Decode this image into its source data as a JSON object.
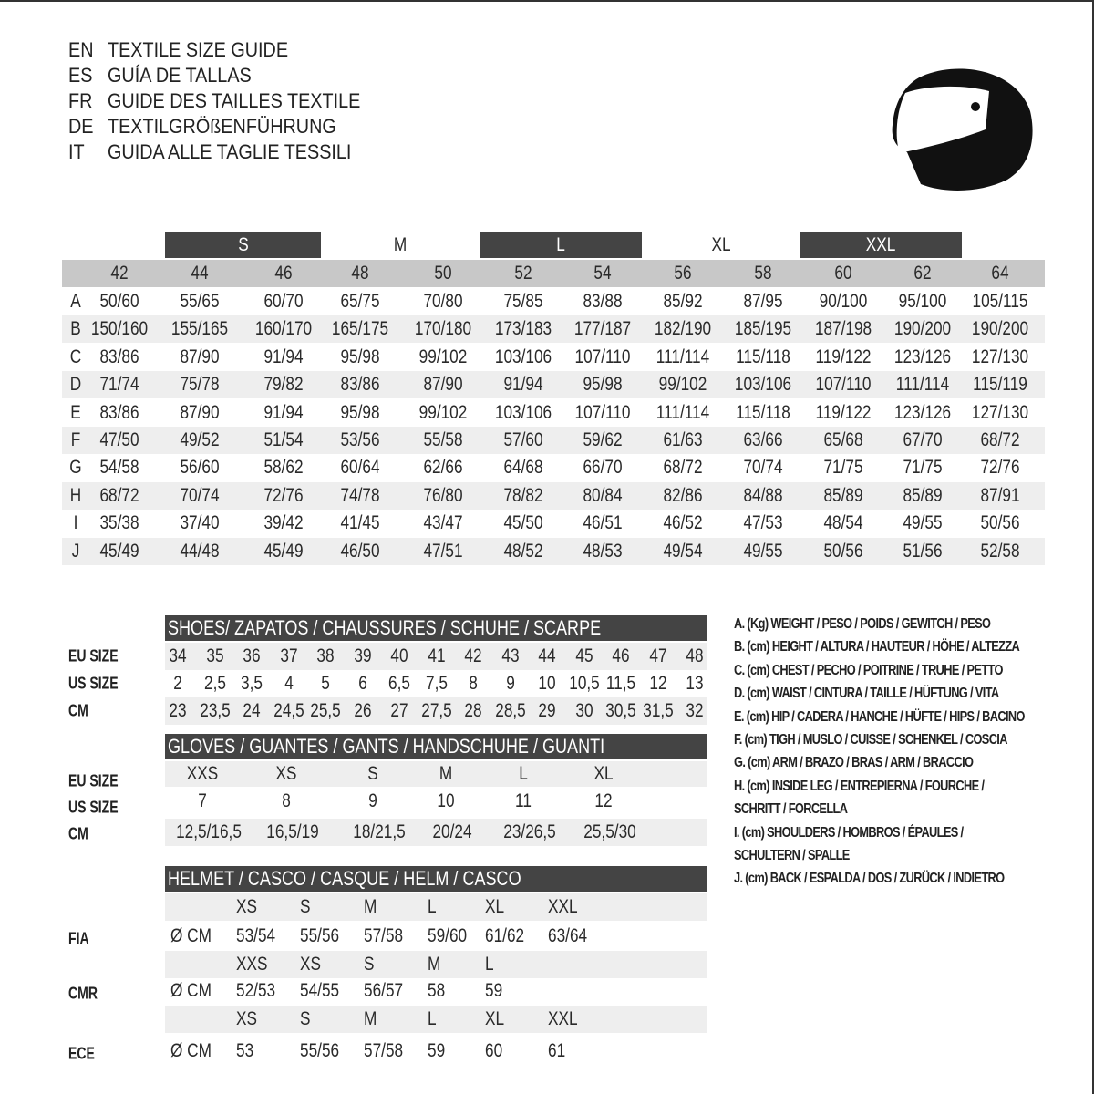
{
  "titles": [
    {
      "code": "EN",
      "text": "TEXTILE SIZE GUIDE"
    },
    {
      "code": "ES",
      "text": "GUÍA DE TALLAS"
    },
    {
      "code": "FR",
      "text": "GUIDE DES TAILLES TEXTILE"
    },
    {
      "code": "DE",
      "text": "TEXTILGRÖßENFÜHRUNG"
    },
    {
      "code": "IT",
      "text": "GUIDA ALLE TAGLIE TESSILI"
    }
  ],
  "logo_icon": "helmet-icon",
  "textile": {
    "size_groups": [
      "S",
      "M",
      "L",
      "XL",
      "XXL"
    ],
    "sizes": [
      "42",
      "44",
      "46",
      "48",
      "50",
      "52",
      "54",
      "56",
      "58",
      "60",
      "62",
      "64"
    ],
    "rows": [
      {
        "label": "A",
        "values": [
          "50/60",
          "55/65",
          "60/70",
          "65/75",
          "70/80",
          "75/85",
          "83/88",
          "85/92",
          "87/95",
          "90/100",
          "95/100",
          "105/115"
        ]
      },
      {
        "label": "B",
        "values": [
          "150/160",
          "155/165",
          "160/170",
          "165/175",
          "170/180",
          "173/183",
          "177/187",
          "182/190",
          "185/195",
          "187/198",
          "190/200",
          "190/200"
        ]
      },
      {
        "label": "C",
        "values": [
          "83/86",
          "87/90",
          "91/94",
          "95/98",
          "99/102",
          "103/106",
          "107/110",
          "111/114",
          "115/118",
          "119/122",
          "123/126",
          "127/130"
        ]
      },
      {
        "label": "D",
        "values": [
          "71/74",
          "75/78",
          "79/82",
          "83/86",
          "87/90",
          "91/94",
          "95/98",
          "99/102",
          "103/106",
          "107/110",
          "111/114",
          "115/119"
        ]
      },
      {
        "label": "E",
        "values": [
          "83/86",
          "87/90",
          "91/94",
          "95/98",
          "99/102",
          "103/106",
          "107/110",
          "111/114",
          "115/118",
          "119/122",
          "123/126",
          "127/130"
        ]
      },
      {
        "label": "F",
        "values": [
          "47/50",
          "49/52",
          "51/54",
          "53/56",
          "55/58",
          "57/60",
          "59/62",
          "61/63",
          "63/66",
          "65/68",
          "67/70",
          "68/72"
        ]
      },
      {
        "label": "G",
        "values": [
          "54/58",
          "56/60",
          "58/62",
          "60/64",
          "62/66",
          "64/68",
          "66/70",
          "68/72",
          "70/74",
          "71/75",
          "71/75",
          "72/76"
        ]
      },
      {
        "label": "H",
        "values": [
          "68/72",
          "70/74",
          "72/76",
          "74/78",
          "76/80",
          "78/82",
          "80/84",
          "82/86",
          "84/88",
          "85/89",
          "85/89",
          "87/91"
        ]
      },
      {
        "label": "I",
        "values": [
          "35/38",
          "37/40",
          "39/42",
          "41/45",
          "43/47",
          "45/50",
          "46/51",
          "46/52",
          "47/53",
          "48/54",
          "49/55",
          "50/56"
        ]
      },
      {
        "label": "J",
        "values": [
          "45/49",
          "44/48",
          "45/49",
          "46/50",
          "47/51",
          "48/52",
          "48/53",
          "49/54",
          "49/55",
          "50/56",
          "51/56",
          "52/58"
        ]
      }
    ]
  },
  "shoes": {
    "header": "SHOES/ ZAPATOS / CHAUSSURES / SCHUHE / SCARPE",
    "rows": [
      {
        "label": "EU SIZE",
        "values": [
          "34",
          "35",
          "36",
          "37",
          "38",
          "39",
          "40",
          "41",
          "42",
          "43",
          "44",
          "45",
          "46",
          "47",
          "48"
        ]
      },
      {
        "label": "US SIZE",
        "values": [
          "2",
          "2,5",
          "3,5",
          "4",
          "5",
          "6",
          "6,5",
          "7,5",
          "8",
          "9",
          "10",
          "10,5",
          "11,5",
          "12",
          "13"
        ]
      },
      {
        "label": "CM",
        "values": [
          "23",
          "23,5",
          "24",
          "24,5",
          "25,5",
          "26",
          "27",
          "27,5",
          "28",
          "28,5",
          "29",
          "30",
          "30,5",
          "31,5",
          "32"
        ]
      }
    ]
  },
  "gloves": {
    "header": "GLOVES / GUANTES / GANTS / HANDSCHUHE / GUANTI",
    "rows": [
      {
        "label": "EU SIZE",
        "values": [
          "XXS",
          "XS",
          "S",
          "M",
          "L",
          "XL"
        ]
      },
      {
        "label": "US SIZE",
        "values": [
          "7",
          "8",
          "9",
          "10",
          "11",
          "12"
        ]
      },
      {
        "label": "CM",
        "values": [
          "12,5/16,5",
          "16,5/19",
          "18/21,5",
          "20/24",
          "23/26,5",
          "25,5/30"
        ]
      }
    ]
  },
  "helmet": {
    "header": "HELMET / CASCO / CASQUE / HELM / CASCO",
    "unit": "Ø CM",
    "standards": [
      {
        "label": "FIA",
        "sizes": [
          "XS",
          "S",
          "M",
          "L",
          "XL",
          "XXL"
        ],
        "values": [
          "53/54",
          "55/56",
          "57/58",
          "59/60",
          "61/62",
          "63/64"
        ]
      },
      {
        "label": "CMR",
        "sizes": [
          "XXS",
          "XS",
          "S",
          "M",
          "L"
        ],
        "values": [
          "52/53",
          "54/55",
          "56/57",
          "58",
          "59"
        ]
      },
      {
        "label": "ECE",
        "sizes": [
          "XS",
          "S",
          "M",
          "L",
          "XL",
          "XXL"
        ],
        "values": [
          "53",
          "55/56",
          "57/58",
          "59",
          "60",
          "61"
        ]
      }
    ]
  },
  "legend": [
    "A. (Kg) WEIGHT / PESO / POIDS / GEWITCH / PESO",
    "B. (cm) HEIGHT / ALTURA / HAUTEUR / HÖHE / ALTEZZA",
    "C. (cm) CHEST / PECHO / POITRINE / TRUHE / PETTO",
    "D. (cm) WAIST / CINTURA / TAILLE / HÜFTUNG / VITA",
    "E. (cm) HIP / CADERA / HANCHE / HÜFTE / HIPS /  BACINO",
    "F.  (cm) TIGH / MUSLO / CUISSE / SCHENKEL / COSCIA",
    "G. (cm) ARM  / BRAZO / BRAS / ARM / BRACCIO",
    "H. (cm) INSIDE LEG / ENTREPIERNA / FOURCHE /",
    "SCHRITT / FORCELLA",
    "I.  (cm) SHOULDERS / HOMBROS / ÉPAULES /",
    "SCHULTERN / SPALLE",
    "J. (cm) BACK / ESPALDA / DOS / ZURÜCK / INDIETRO"
  ],
  "colors": {
    "header_dark": "#444444",
    "band_gray": "#eeeeee",
    "size_row_gray": "#c8c8c8"
  }
}
